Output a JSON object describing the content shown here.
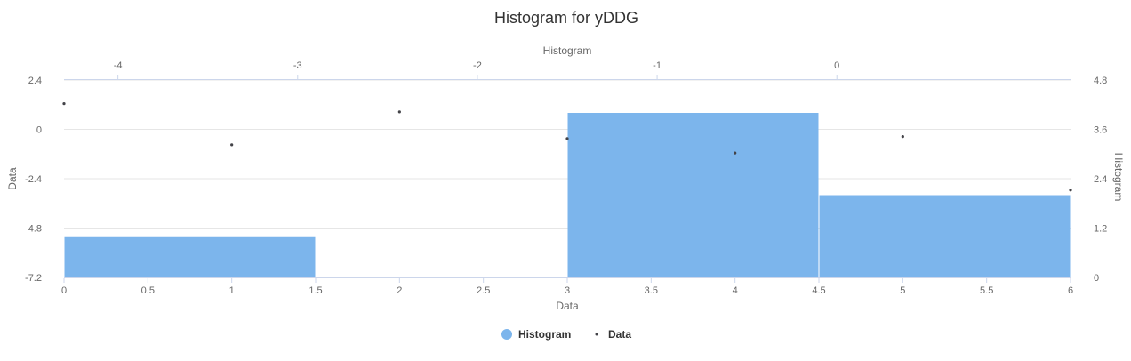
{
  "chart_data": {
    "type": "bar",
    "title": "Histogram for yDDG",
    "x_bottom": {
      "label": "Data",
      "min": 0,
      "max": 6,
      "ticks": [
        "0",
        "0.5",
        "1",
        "1.5",
        "2",
        "2.5",
        "3",
        "3.5",
        "4",
        "4.5",
        "5",
        "5.5",
        "6"
      ]
    },
    "x_top": {
      "label": "Histogram",
      "min": -4.3,
      "max": 1.3,
      "ticks": [
        "-4",
        "-3",
        "-2",
        "-1",
        "0"
      ]
    },
    "y_left": {
      "label": "Data",
      "min": -7.2,
      "max": 2.4,
      "ticks": [
        "2.4",
        "0",
        "-2.4",
        "-4.8",
        "-7.2"
      ]
    },
    "y_right": {
      "label": "Histogram",
      "min": 0,
      "max": 4.8,
      "ticks": [
        "4.8",
        "3.6",
        "2.4",
        "1.2",
        "0"
      ]
    },
    "grid": true,
    "legend": "bottom-center",
    "series": [
      {
        "name": "Histogram",
        "type": "column",
        "color": "#7cb5ec",
        "bins": [
          {
            "x0": 0,
            "x1": 1.5,
            "value": 1
          },
          {
            "x0": 1.5,
            "x1": 3,
            "value": 0
          },
          {
            "x0": 3,
            "x1": 4.5,
            "value": 4
          },
          {
            "x0": 4.5,
            "x1": 6,
            "value": 2
          }
        ]
      },
      {
        "name": "Data",
        "type": "scatter",
        "color": "#434348",
        "x": [
          0,
          1,
          2,
          3,
          4,
          5,
          6
        ],
        "y": [
          1.25,
          -0.75,
          0.85,
          -0.45,
          -1.15,
          -0.35,
          -2.95
        ]
      }
    ]
  }
}
